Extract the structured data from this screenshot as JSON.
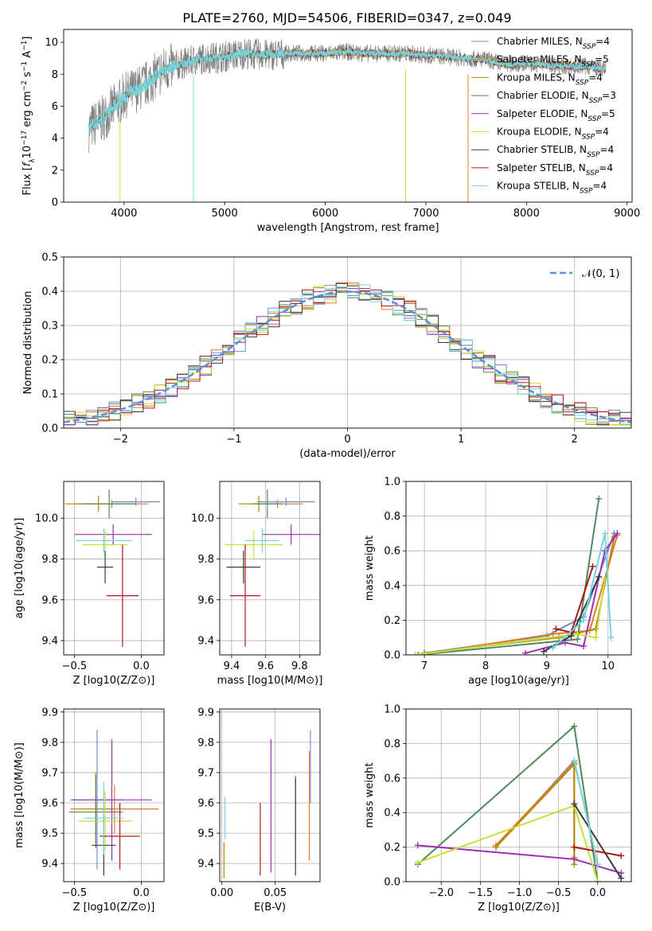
{
  "page": {
    "title": "PLATE=2760, MJD=54506, FIBERID=0347, z=0.049"
  },
  "models": [
    {
      "name": "Chabrier MILES",
      "n_ssp": "4",
      "color": "#6b8fd6"
    },
    {
      "name": "Salpeter MILES",
      "n_ssp": "5",
      "color": "#e07b2a"
    },
    {
      "name": "Kroupa MILES",
      "n_ssp": "4",
      "color": "#b58a00"
    },
    {
      "name": "Chabrier ELODIE",
      "n_ssp": "3",
      "color": "#4f8a5c"
    },
    {
      "name": "Salpeter ELODIE",
      "n_ssp": "5",
      "color": "#9b30b5"
    },
    {
      "name": "Kroupa ELODIE",
      "n_ssp": "4",
      "color": "#c7df3a"
    },
    {
      "name": "Chabrier STELIB",
      "n_ssp": "4",
      "color": "#3a3a3a"
    },
    {
      "name": "Salpeter STELIB",
      "n_ssp": "4",
      "color": "#b01818"
    },
    {
      "name": "Kroupa STELIB",
      "n_ssp": "4",
      "color": "#75d3dc"
    }
  ],
  "chart_data": [
    {
      "id": "spectrum",
      "type": "line",
      "xlabel": "wavelength [Angstrom, rest frame]",
      "ylabel": "Flux [f_λ 10^-17 erg cm^-2 s^-1 A^-1]",
      "xlim": [
        3400,
        9050
      ],
      "ylim": [
        0,
        10.8
      ],
      "xticks": [
        4000,
        5000,
        6000,
        7000,
        8000,
        9000
      ],
      "yticks": [
        0,
        2,
        4,
        6,
        8,
        10
      ],
      "data_color": "#808080",
      "model_color": "#75d3dc",
      "x": [
        3650,
        3800,
        4000,
        4200,
        4400,
        4600,
        4800,
        5000,
        5200,
        5400,
        5600,
        5800,
        6000,
        6200,
        6400,
        6600,
        6800,
        7000,
        7200,
        7400,
        7600,
        7800,
        8000,
        8200,
        8400,
        8600,
        8800
      ],
      "y": [
        4.6,
        5.3,
        6.6,
        7.3,
        8.3,
        8.7,
        9.0,
        9.1,
        9.3,
        9.2,
        9.3,
        9.3,
        9.3,
        9.4,
        9.3,
        9.3,
        9.3,
        9.2,
        9.1,
        9.0,
        8.9,
        8.6,
        8.7,
        8.6,
        8.5,
        8.5,
        8.3
      ],
      "grid": false,
      "legend": "top-right"
    },
    {
      "id": "residuals",
      "type": "bar",
      "xlabel": "(data-model)/error",
      "ylabel": "Normed distribution",
      "xlim": [
        -2.5,
        2.5
      ],
      "ylim": [
        0,
        0.5
      ],
      "xticks": [
        -2,
        -1,
        0,
        1,
        2
      ],
      "yticks": [
        0.0,
        0.1,
        0.2,
        0.3,
        0.4,
        0.5
      ],
      "bin_width": 0.1,
      "reference": {
        "label": "𝒩(0, 1)",
        "mean": 0,
        "sigma": 1,
        "color": "#5a8fd6"
      },
      "grid": true,
      "legend": "top-right"
    },
    {
      "id": "age-vs-Z",
      "type": "scatter",
      "xlabel": "Z [log10(Z/Z⊙)]",
      "ylabel": "age [log10(age/yr)]",
      "xlim": [
        -0.58,
        0.17
      ],
      "ylim": [
        9.33,
        10.18
      ],
      "xticks": [
        -0.5,
        0.0
      ],
      "yticks": [
        9.4,
        9.6,
        9.8,
        10.0
      ],
      "points": [
        {
          "x": -0.04,
          "y": 10.08,
          "xerr": 0.18,
          "yerr": 0.02
        },
        {
          "x": -0.22,
          "y": 10.07,
          "xerr": 0.27,
          "yerr": 0.02
        },
        {
          "x": -0.32,
          "y": 10.07,
          "xerr": 0.25,
          "yerr": 0.04
        },
        {
          "x": -0.24,
          "y": 10.07,
          "xerr": 0.2,
          "yerr": 0.07
        },
        {
          "x": -0.21,
          "y": 9.92,
          "xerr": 0.29,
          "yerr": 0.05
        },
        {
          "x": -0.27,
          "y": 9.87,
          "xerr": 0.17,
          "yerr": 0.07
        },
        {
          "x": -0.27,
          "y": 9.76,
          "xerr": 0.06,
          "yerr": 0.08
        },
        {
          "x": -0.14,
          "y": 9.62,
          "xerr": 0.12,
          "yerr": 0.25
        },
        {
          "x": -0.28,
          "y": 9.89,
          "xerr": 0.21,
          "yerr": 0.06
        }
      ],
      "grid": true
    },
    {
      "id": "age-vs-mass",
      "type": "scatter",
      "xlabel": "mass [log10(M/M⊙)]",
      "ylabel": "",
      "xlim": [
        9.33,
        9.92
      ],
      "ylim": [
        9.33,
        10.18
      ],
      "xticks": [
        9.4,
        9.6,
        9.8
      ],
      "yticks": [
        9.4,
        9.6,
        9.8,
        10.0
      ],
      "points": [
        {
          "x": 9.72,
          "y": 10.08,
          "xerr": 0.17,
          "yerr": 0.02
        },
        {
          "x": 9.67,
          "y": 10.07,
          "xerr": 0.15,
          "yerr": 0.02
        },
        {
          "x": 9.56,
          "y": 10.07,
          "xerr": 0.12,
          "yerr": 0.04
        },
        {
          "x": 9.61,
          "y": 10.07,
          "xerr": 0.09,
          "yerr": 0.07
        },
        {
          "x": 9.75,
          "y": 9.92,
          "xerr": 0.17,
          "yerr": 0.05
        },
        {
          "x": 9.53,
          "y": 9.87,
          "xerr": 0.17,
          "yerr": 0.07
        },
        {
          "x": 9.47,
          "y": 9.76,
          "xerr": 0.1,
          "yerr": 0.08
        },
        {
          "x": 9.48,
          "y": 9.62,
          "xerr": 0.09,
          "yerr": 0.25
        },
        {
          "x": 9.58,
          "y": 9.89,
          "xerr": 0.1,
          "yerr": 0.06
        }
      ],
      "grid": true
    },
    {
      "id": "weight-vs-age",
      "type": "line",
      "xlabel": "age [log10(age/yr)]",
      "ylabel": "mass weight",
      "xlim": [
        6.7,
        10.38
      ],
      "ylim": [
        0,
        1.0
      ],
      "xticks": [
        7,
        8,
        9,
        10
      ],
      "yticks": [
        0.0,
        0.2,
        0.4,
        0.6,
        0.8,
        1.0
      ],
      "series": [
        {
          "x": [
            7.0,
            9.0,
            9.6,
            10.1
          ],
          "y": [
            0.01,
            0.11,
            0.22,
            0.7
          ]
        },
        {
          "x": [
            6.9,
            9.1,
            9.7,
            10.15
          ],
          "y": [
            0.0,
            0.12,
            0.14,
            0.69
          ]
        },
        {
          "x": [
            7.0,
            9.2,
            9.8,
            10.1
          ],
          "y": [
            0.01,
            0.1,
            0.15,
            0.68
          ]
        },
        {
          "x": [
            6.9,
            9.5,
            9.85
          ],
          "y": [
            0.0,
            0.09,
            0.9
          ]
        },
        {
          "x": [
            8.65,
            9.3,
            9.6,
            9.95,
            10.15
          ],
          "y": [
            0.01,
            0.07,
            0.05,
            0.6,
            0.7
          ]
        },
        {
          "x": [
            6.85,
            9.5,
            9.8,
            9.95
          ],
          "y": [
            0.0,
            0.12,
            0.1,
            0.44
          ]
        },
        {
          "x": [
            8.95,
            9.4,
            9.85
          ],
          "y": [
            0.02,
            0.11,
            0.45
          ]
        },
        {
          "x": [
            9.15,
            9.4,
            9.75
          ],
          "y": [
            0.15,
            0.13,
            0.51
          ]
        },
        {
          "x": [
            9.1,
            9.6,
            9.95,
            10.05
          ],
          "y": [
            0.04,
            0.2,
            0.7,
            0.1
          ]
        }
      ],
      "grid": true
    },
    {
      "id": "mass-vs-Z",
      "type": "scatter",
      "xlabel": "Z [log10(Z/Z⊙)]",
      "ylabel": "mass [log10(M/M⊙)]",
      "xlim": [
        -0.58,
        0.17
      ],
      "ylim": [
        9.34,
        9.91
      ],
      "xticks": [
        -0.5,
        0.0
      ],
      "yticks": [
        9.4,
        9.5,
        9.6,
        9.7,
        9.8,
        9.9
      ],
      "points": [
        {
          "x": -0.33,
          "y": 9.61,
          "xerr": 0.2,
          "yerr": 0.23
        },
        {
          "x": -0.2,
          "y": 9.58,
          "xerr": 0.33,
          "yerr": 0.08
        },
        {
          "x": -0.34,
          "y": 9.58,
          "xerr": 0.13,
          "yerr": 0.12
        },
        {
          "x": -0.34,
          "y": 9.57,
          "xerr": 0.2,
          "yerr": 0.12
        },
        {
          "x": -0.22,
          "y": 9.61,
          "xerr": 0.3,
          "yerr": 0.2
        },
        {
          "x": -0.27,
          "y": 9.54,
          "xerr": 0.2,
          "yerr": 0.1
        },
        {
          "x": -0.28,
          "y": 9.46,
          "xerr": 0.09,
          "yerr": 0.1
        },
        {
          "x": -0.16,
          "y": 9.49,
          "xerr": 0.15,
          "yerr": 0.11
        },
        {
          "x": -0.28,
          "y": 9.55,
          "xerr": 0.15,
          "yerr": 0.12
        }
      ],
      "grid": true
    },
    {
      "id": "mass-vs-ebv",
      "type": "scatter",
      "xlabel": "E(B-V)",
      "ylabel": "",
      "xlim": [
        -0.002,
        0.092
      ],
      "ylim": [
        9.34,
        9.91
      ],
      "xticks": [
        0.0,
        0.05
      ],
      "yticks": [
        9.4,
        9.5,
        9.6,
        9.7,
        9.8,
        9.9
      ],
      "points": [
        {
          "x": 0.083,
          "y": 9.72,
          "yerr": 0.12
        },
        {
          "x": 0.082,
          "y": 9.59,
          "yerr": 0.18
        },
        {
          "x": 0.002,
          "y": 9.41,
          "yerr": 0.06
        },
        {
          "x": 0.069,
          "y": 9.59,
          "yerr": 0.1
        },
        {
          "x": 0.046,
          "y": 9.59,
          "yerr": 0.22
        },
        {
          "x": 0.069,
          "y": 9.54,
          "yerr": 0.13
        },
        {
          "x": 0.069,
          "y": 9.52,
          "yerr": 0.16
        },
        {
          "x": 0.036,
          "y": 9.48,
          "yerr": 0.12
        },
        {
          "x": 0.003,
          "y": 9.55,
          "yerr": 0.07
        }
      ],
      "grid": true
    },
    {
      "id": "weight-vs-Z",
      "type": "line",
      "xlabel": "Z [log10(Z/Z⊙)]",
      "ylabel": "mass weight",
      "xlim": [
        -2.45,
        0.43
      ],
      "ylim": [
        0,
        1.0
      ],
      "xticks": [
        -2.0,
        -1.5,
        -1.0,
        -0.5,
        0.0
      ],
      "yticks": [
        0.0,
        0.2,
        0.4,
        0.6,
        0.8,
        1.0
      ],
      "series": [
        {
          "x": [
            -1.3,
            -0.3,
            0.0
          ],
          "y": [
            0.2,
            0.7,
            0.1
          ]
        },
        {
          "x": [
            -1.3,
            -0.3,
            -0.3
          ],
          "y": [
            0.21,
            0.69,
            0.14
          ]
        },
        {
          "x": [
            -1.3,
            -0.3,
            -0.3
          ],
          "y": [
            0.2,
            0.68,
            0.1
          ]
        },
        {
          "x": [
            -2.3,
            -0.3,
            0.0
          ],
          "y": [
            0.1,
            0.9,
            0.0
          ]
        },
        {
          "x": [
            -2.3,
            -0.3,
            0.3
          ],
          "y": [
            0.21,
            0.13,
            0.05
          ]
        },
        {
          "x": [
            -2.3,
            -0.3,
            0.0
          ],
          "y": [
            0.11,
            0.44,
            0.0
          ]
        },
        {
          "x": [
            -0.3,
            0.3
          ],
          "y": [
            0.45,
            0.02
          ]
        },
        {
          "x": [
            -0.3,
            0.3
          ],
          "y": [
            0.2,
            0.15
          ]
        },
        {
          "x": [
            -0.3,
            0.0
          ],
          "y": [
            0.7,
            0.1
          ]
        }
      ],
      "grid": true
    }
  ]
}
